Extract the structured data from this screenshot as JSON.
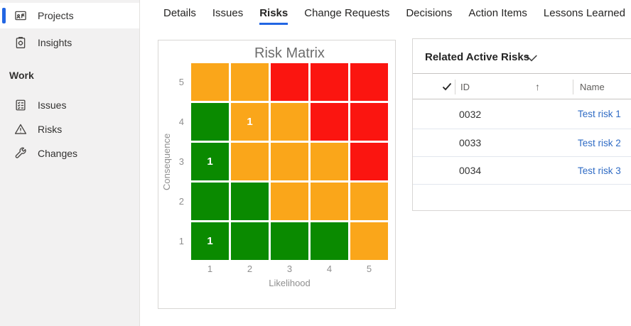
{
  "colors": {
    "accent": "#2266e3",
    "link": "#2f6bc4",
    "green": "#0a8a00",
    "orange": "#faa61a",
    "red": "#fb1510",
    "chart_title": "#6d6d6d",
    "axis_text": "#8f8f8f",
    "sidebar_bg": "#f2f1f1",
    "card_border": "#d8d6d4"
  },
  "sidebar": {
    "items": [
      {
        "label": "Projects",
        "icon": "projects-icon",
        "selected": true
      },
      {
        "label": "Insights",
        "icon": "insights-icon",
        "selected": false
      }
    ],
    "section": "Work",
    "work_items": [
      {
        "label": "Issues",
        "icon": "issues-icon"
      },
      {
        "label": "Risks",
        "icon": "risks-icon"
      },
      {
        "label": "Changes",
        "icon": "changes-icon"
      }
    ]
  },
  "tabs": [
    {
      "label": "Details",
      "active": false
    },
    {
      "label": "Issues",
      "active": false
    },
    {
      "label": "Risks",
      "active": true
    },
    {
      "label": "Change Requests",
      "active": false
    },
    {
      "label": "Decisions",
      "active": false
    },
    {
      "label": "Action Items",
      "active": false
    },
    {
      "label": "Lessons Learned",
      "active": false
    }
  ],
  "chart_data": {
    "type": "heatmap",
    "title": "Risk Matrix",
    "xlabel": "Likelihood",
    "ylabel": "Consequence",
    "x_ticks": [
      "1",
      "2",
      "3",
      "4",
      "5"
    ],
    "y_ticks": [
      "5",
      "4",
      "3",
      "2",
      "1"
    ],
    "grid_rows_top_to_bottom": "consequence 5 to 1, columns likelihood 1 to 5",
    "grid": [
      [
        "orange",
        "orange",
        "red",
        "red",
        "red"
      ],
      [
        "green",
        "orange",
        "orange",
        "red",
        "red"
      ],
      [
        "green",
        "orange",
        "orange",
        "orange",
        "red"
      ],
      [
        "green",
        "green",
        "orange",
        "orange",
        "orange"
      ],
      [
        "green",
        "green",
        "green",
        "green",
        "orange"
      ]
    ],
    "counts": [
      {
        "likelihood": 2,
        "consequence": 4,
        "count": "1"
      },
      {
        "likelihood": 1,
        "consequence": 3,
        "count": "1"
      },
      {
        "likelihood": 1,
        "consequence": 1,
        "count": "1"
      }
    ],
    "legend_position": "none",
    "gridlines": "white gaps between cells"
  },
  "related_risks": {
    "title": "Related Active Risks",
    "collapse_icon": "chevron-down-icon",
    "select_all_icon": "checkmark-icon",
    "sort": {
      "column": "ID",
      "direction": "ascending",
      "icon": "arrow-up-icon",
      "glyph": "↑"
    },
    "columns": {
      "id": "ID",
      "name": "Name"
    },
    "rows": [
      {
        "id": "0032",
        "name": "Test risk 1"
      },
      {
        "id": "0033",
        "name": "Test risk 2"
      },
      {
        "id": "0034",
        "name": "Test risk 3"
      }
    ]
  }
}
